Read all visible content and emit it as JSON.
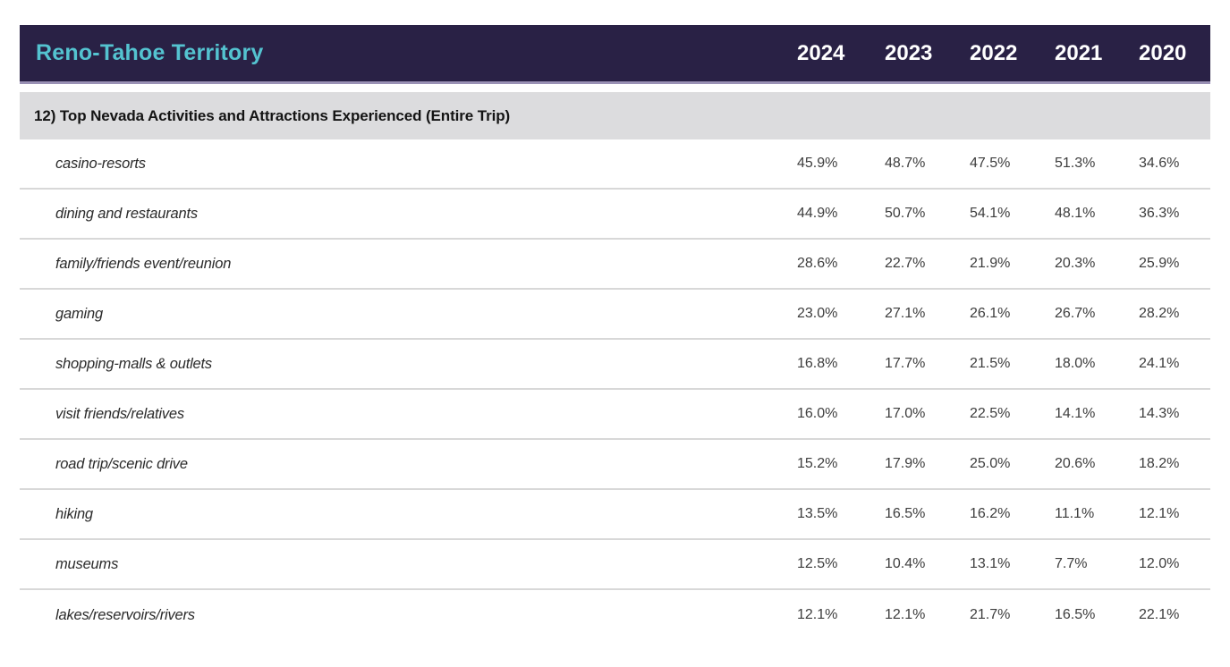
{
  "header": {
    "title": "Reno-Tahoe Territory",
    "years": [
      "2024",
      "2023",
      "2022",
      "2021",
      "2020"
    ]
  },
  "section": {
    "label": "12) Top Nevada Activities and Attractions Experienced (Entire Trip)"
  },
  "rows": [
    {
      "label": "casino-resorts",
      "values": [
        "45.9%",
        "48.7%",
        "47.5%",
        "51.3%",
        "34.6%"
      ]
    },
    {
      "label": "dining and restaurants",
      "values": [
        "44.9%",
        "50.7%",
        "54.1%",
        "48.1%",
        "36.3%"
      ]
    },
    {
      "label": "family/friends event/reunion",
      "values": [
        "28.6%",
        "22.7%",
        "21.9%",
        "20.3%",
        "25.9%"
      ]
    },
    {
      "label": "gaming",
      "values": [
        "23.0%",
        "27.1%",
        "26.1%",
        "26.7%",
        "28.2%"
      ]
    },
    {
      "label": "shopping-malls & outlets",
      "values": [
        "16.8%",
        "17.7%",
        "21.5%",
        "18.0%",
        "24.1%"
      ]
    },
    {
      "label": "visit friends/relatives",
      "values": [
        "16.0%",
        "17.0%",
        "22.5%",
        "14.1%",
        "14.3%"
      ]
    },
    {
      "label": "road trip/scenic drive",
      "values": [
        "15.2%",
        "17.9%",
        "25.0%",
        "20.6%",
        "18.2%"
      ]
    },
    {
      "label": "hiking",
      "values": [
        "13.5%",
        "16.5%",
        "16.2%",
        "11.1%",
        "12.1%"
      ]
    },
    {
      "label": "museums",
      "values": [
        "12.5%",
        "10.4%",
        "13.1%",
        "7.7%",
        "12.0%"
      ]
    },
    {
      "label": "lakes/reservoirs/rivers",
      "values": [
        "12.1%",
        "12.1%",
        "21.7%",
        "16.5%",
        "22.1%"
      ]
    }
  ],
  "colors": {
    "header_bg": "#292145",
    "header_title": "#54c3d0",
    "header_underline": "#9a91b5",
    "section_bg": "#dcdcde",
    "divider": "#d8d8d8"
  },
  "chart_data": {
    "type": "table",
    "title": "Reno-Tahoe Territory",
    "section": "12) Top Nevada Activities and Attractions Experienced (Entire Trip)",
    "categories": [
      "2024",
      "2023",
      "2022",
      "2021",
      "2020"
    ],
    "unit": "percent",
    "series": [
      {
        "name": "casino-resorts",
        "values": [
          45.9,
          48.7,
          47.5,
          51.3,
          34.6
        ]
      },
      {
        "name": "dining and restaurants",
        "values": [
          44.9,
          50.7,
          54.1,
          48.1,
          36.3
        ]
      },
      {
        "name": "family/friends event/reunion",
        "values": [
          28.6,
          22.7,
          21.9,
          20.3,
          25.9
        ]
      },
      {
        "name": "gaming",
        "values": [
          23.0,
          27.1,
          26.1,
          26.7,
          28.2
        ]
      },
      {
        "name": "shopping-malls & outlets",
        "values": [
          16.8,
          17.7,
          21.5,
          18.0,
          24.1
        ]
      },
      {
        "name": "visit friends/relatives",
        "values": [
          16.0,
          17.0,
          22.5,
          14.1,
          14.3
        ]
      },
      {
        "name": "road trip/scenic drive",
        "values": [
          15.2,
          17.9,
          25.0,
          20.6,
          18.2
        ]
      },
      {
        "name": "hiking",
        "values": [
          13.5,
          16.5,
          16.2,
          11.1,
          12.1
        ]
      },
      {
        "name": "museums",
        "values": [
          12.5,
          10.4,
          13.1,
          7.7,
          12.0
        ]
      },
      {
        "name": "lakes/reservoirs/rivers",
        "values": [
          12.1,
          12.1,
          21.7,
          16.5,
          22.1
        ]
      }
    ]
  }
}
